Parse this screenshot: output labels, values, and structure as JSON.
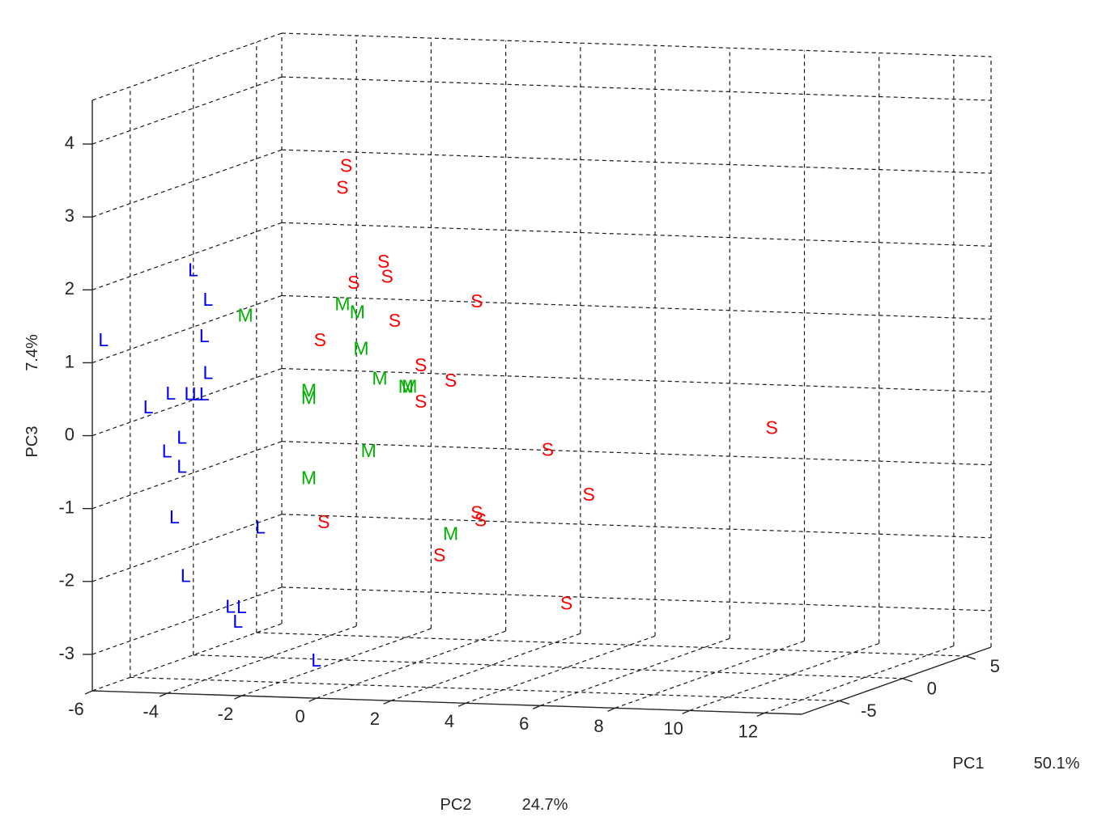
{
  "chart_data": {
    "type": "scatter",
    "title": "",
    "axes": {
      "pc1": {
        "label": "PC1",
        "variance": "50.1%",
        "ticks": [
          -5,
          0,
          5
        ]
      },
      "pc2": {
        "label": "PC2",
        "variance": "24.7%",
        "ticks": [
          -6,
          -4,
          -2,
          0,
          2,
          4,
          6,
          8,
          10,
          12
        ]
      },
      "pc3": {
        "label": "PC3",
        "variance": "7.4%",
        "ticks": [
          -3,
          -2,
          -1,
          0,
          1,
          2,
          3,
          4
        ]
      }
    },
    "grid": true,
    "colors": {
      "L": "#0000ff",
      "M": "#00b000",
      "S": "#ff0000"
    },
    "marker_note": "Points are drawn as their group letters L, M, S",
    "series": [
      {
        "name": "L",
        "points": [
          [
            -5.7,
            1.3
          ],
          [
            -3.3,
            2.3
          ],
          [
            -2.9,
            1.9
          ],
          [
            -3.0,
            1.4
          ],
          [
            -2.9,
            0.9
          ],
          [
            -3.9,
            0.6
          ],
          [
            -3.4,
            0.6
          ],
          [
            -3.2,
            0.6
          ],
          [
            -3.0,
            0.6
          ],
          [
            -4.5,
            0.4
          ],
          [
            -3.6,
            0.0
          ],
          [
            -4.0,
            -0.2
          ],
          [
            -3.6,
            -0.4
          ],
          [
            -3.8,
            -1.1
          ],
          [
            -1.5,
            -1.2
          ],
          [
            -3.5,
            -1.9
          ],
          [
            -2.3,
            -2.3
          ],
          [
            -2.0,
            -2.3
          ],
          [
            -2.1,
            -2.5
          ],
          [
            0.0,
            -3.0
          ]
        ]
      },
      {
        "name": "M",
        "points": [
          [
            -1.9,
            1.7
          ],
          [
            0.7,
            1.9
          ],
          [
            1.1,
            1.8
          ],
          [
            1.2,
            1.3
          ],
          [
            -0.2,
            0.7
          ],
          [
            -0.2,
            0.6
          ],
          [
            1.7,
            0.9
          ],
          [
            2.4,
            0.8
          ],
          [
            2.5,
            0.8
          ],
          [
            1.4,
            -0.1
          ],
          [
            -0.2,
            -0.5
          ],
          [
            3.6,
            -1.2
          ]
        ]
      },
      {
        "name": "S",
        "points": [
          [
            0.8,
            3.8
          ],
          [
            0.7,
            3.5
          ],
          [
            1.8,
            2.5
          ],
          [
            1.9,
            2.3
          ],
          [
            1.0,
            2.2
          ],
          [
            4.3,
            2.0
          ],
          [
            2.1,
            1.7
          ],
          [
            0.1,
            1.4
          ],
          [
            2.8,
            1.1
          ],
          [
            3.6,
            0.9
          ],
          [
            2.8,
            0.6
          ],
          [
            12.2,
            0.4
          ],
          [
            6.2,
            0.0
          ],
          [
            7.3,
            -0.6
          ],
          [
            4.3,
            -0.9
          ],
          [
            4.4,
            -1.0
          ],
          [
            0.2,
            -1.1
          ],
          [
            3.3,
            -1.5
          ],
          [
            6.7,
            -2.1
          ]
        ]
      }
    ]
  }
}
